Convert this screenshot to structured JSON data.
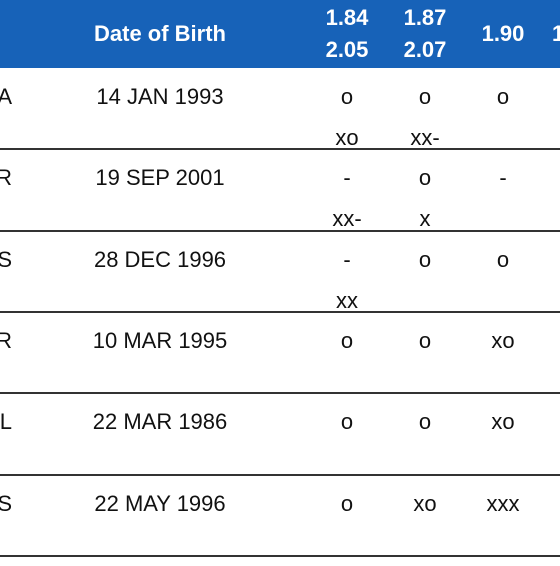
{
  "table": {
    "header": [
      [
        "Date of Birth"
      ],
      [
        "1.84",
        "2.05"
      ],
      [
        "1.87",
        "2.07"
      ],
      [
        "1.90"
      ],
      [
        "1"
      ]
    ],
    "rows": [
      [
        [
          "A"
        ],
        [
          "14 JAN 1993"
        ],
        [
          "o",
          "xo"
        ],
        [
          "o",
          "xx-"
        ],
        [
          "o"
        ]
      ],
      [
        [
          "R"
        ],
        [
          "19 SEP 2001"
        ],
        [
          "-",
          "xx-"
        ],
        [
          "o",
          "x"
        ],
        [
          "-"
        ]
      ],
      [
        [
          "S"
        ],
        [
          "28 DEC 1996"
        ],
        [
          "-",
          "xx"
        ],
        [
          "o"
        ],
        [
          "o"
        ]
      ],
      [
        [
          "R"
        ],
        [
          "10 MAR 1995"
        ],
        [
          "o"
        ],
        [
          "o"
        ],
        [
          "xo"
        ]
      ],
      [
        [
          "L"
        ],
        [
          "22 MAR 1986"
        ],
        [
          "o"
        ],
        [
          "o"
        ],
        [
          "xo"
        ]
      ],
      [
        [
          "S"
        ],
        [
          "22 MAY 1996"
        ],
        [
          "o"
        ],
        [
          "xo"
        ],
        [
          "xxx"
        ]
      ]
    ]
  }
}
